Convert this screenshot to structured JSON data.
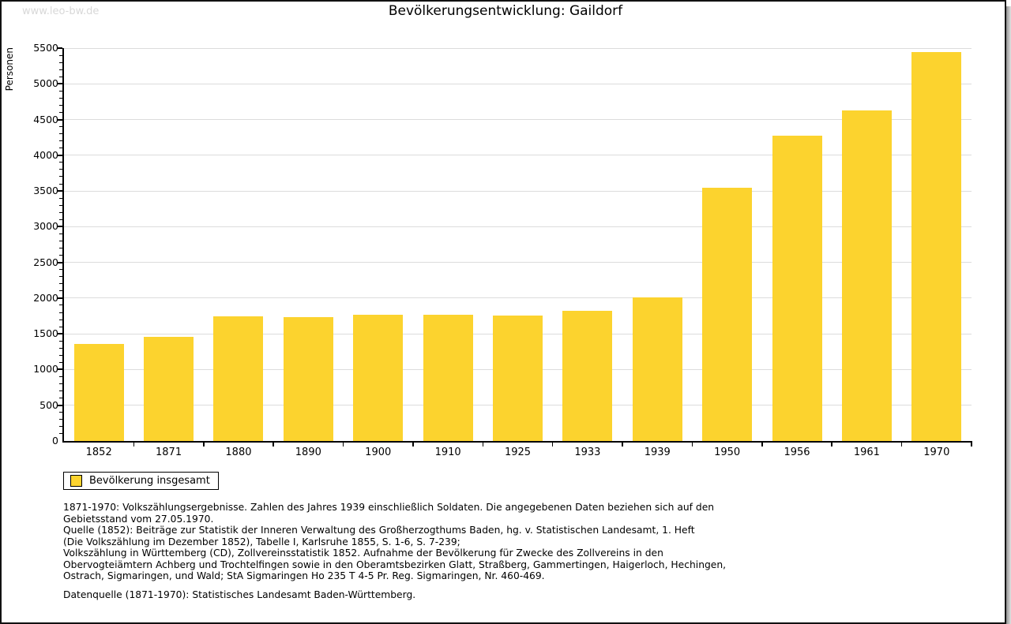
{
  "window": {
    "watermark": "www.leo-bw.de"
  },
  "chart_data": {
    "type": "bar",
    "title": "Bevölkerungsentwicklung: Gaildorf",
    "xlabel": "",
    "ylabel": "Personen",
    "categories": [
      "1852",
      "1871",
      "1880",
      "1890",
      "1900",
      "1910",
      "1925",
      "1933",
      "1939",
      "1950",
      "1956",
      "1961",
      "1970"
    ],
    "values": [
      1355,
      1455,
      1750,
      1730,
      1770,
      1770,
      1760,
      1820,
      2005,
      3540,
      4270,
      4625,
      5440
    ],
    "series_name": "Bevölkerung insgesamt",
    "ylim": [
      0,
      5500
    ],
    "ytick_step": 500,
    "yminor_step": 100,
    "grid": "horizontal",
    "legend_position": "bottom-left",
    "bar_color": "#FCD32E"
  },
  "legend": {
    "label": "Bevölkerung insgesamt"
  },
  "colors": {
    "bar": "#FCD32E",
    "grid": "#DCDCDC",
    "axis": "#000000",
    "watermark": "#D8D8D8"
  },
  "footnotes": {
    "lines": [
      "1871-1970: Volkszählungsergebnisse. Zahlen des Jahres 1939 einschließlich Soldaten. Die angegebenen Daten beziehen sich auf den",
      "Gebietsstand vom 27.05.1970.",
      "Quelle (1852): Beiträge zur Statistik der Inneren Verwaltung des Großherzogthums Baden, hg. v. Statistischen Landesamt, 1. Heft",
      "(Die Volkszählung im Dezember 1852), Tabelle I, Karlsruhe 1855, S. 1-6, S. 7-239;",
      "Volkszählung in Württemberg (CD), Zollvereinsstatistik 1852. Aufnahme der Bevölkerung für Zwecke des Zollvereins in den",
      "Obervogteiämtern Achberg und Trochtelfingen sowie in den Oberamtsbezirken Glatt, Straßberg, Gammertingen, Haigerloch, Hechingen,",
      "Ostrach, Sigmaringen, und Wald; StA Sigmaringen Ho 235 T 4-5 Pr. Reg. Sigmaringen, Nr. 460-469."
    ],
    "datasource": "Datenquelle (1871-1970): Statistisches Landesamt Baden-Württemberg."
  }
}
